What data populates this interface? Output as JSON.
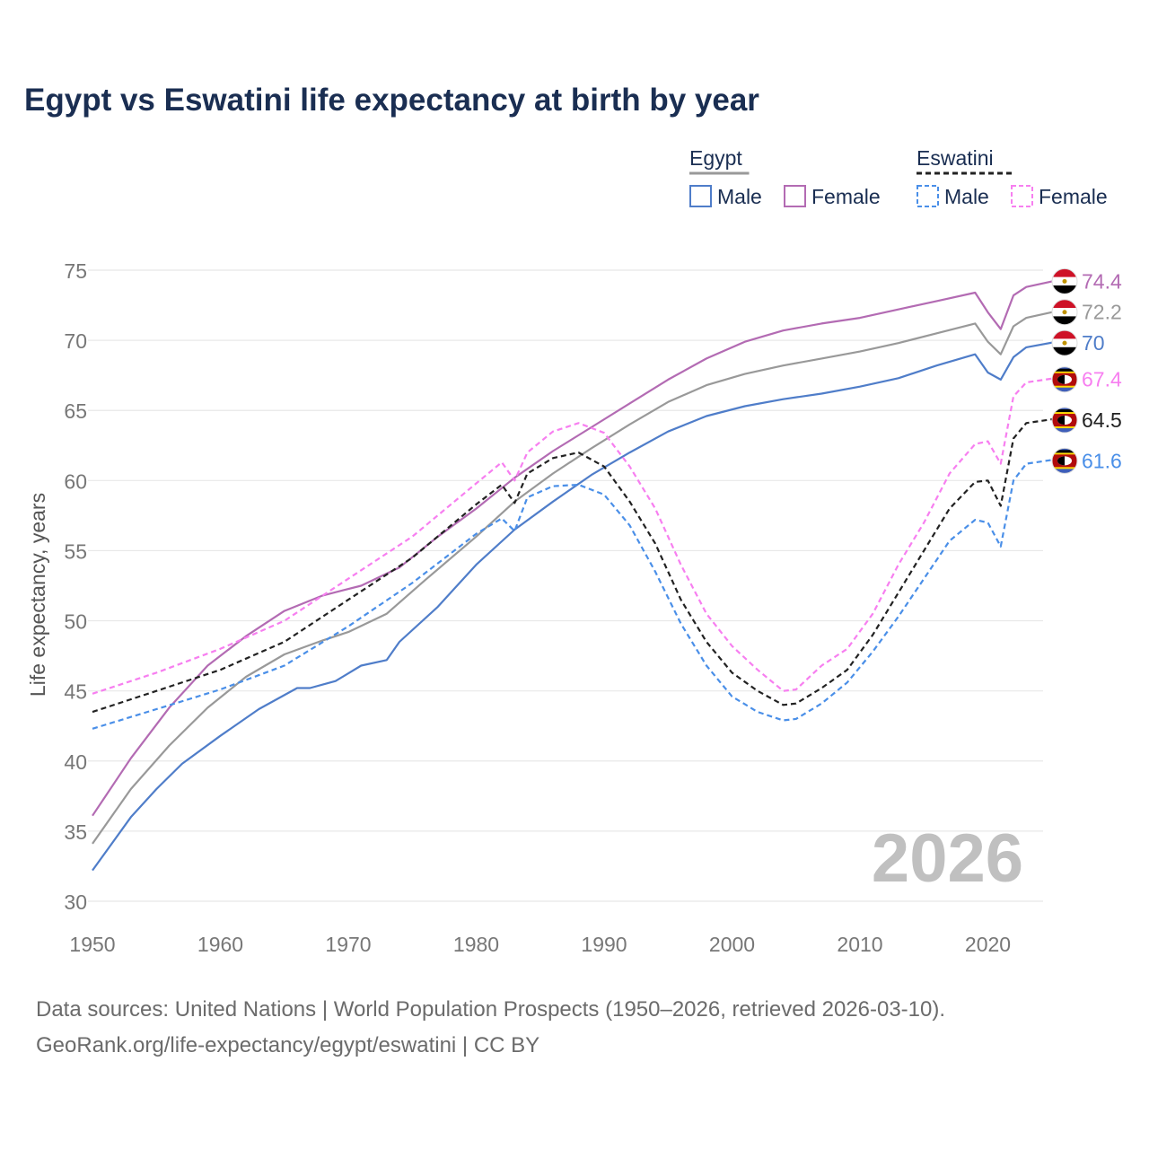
{
  "title": "Egypt vs Eswatini life expectancy at birth by year",
  "legend": {
    "groups": [
      {
        "country": "Egypt",
        "line": "solid",
        "color": "#999999",
        "items": [
          {
            "label": "Male",
            "color": "#4f7dc9"
          },
          {
            "label": "Female",
            "color": "#b36bb3"
          }
        ]
      },
      {
        "country": "Eswatini",
        "line": "dashed",
        "color": "#222222",
        "items": [
          {
            "label": "Male",
            "color": "#4a8fe8"
          },
          {
            "label": "Female",
            "color": "#f77ff0"
          }
        ]
      }
    ]
  },
  "year_watermark": "2026",
  "footer": {
    "line1": "Data sources: United Nations | World Population Prospects (1950–2026, retrieved 2026-03-10).",
    "line2": "GeoRank.org/life-expectancy/egypt/eswatini | CC BY"
  },
  "colors": {
    "egypt_total": "#999999",
    "egypt_male": "#4f7dc9",
    "egypt_female": "#b36bb3",
    "eswatini_total": "#222222",
    "eswatini_male": "#4a8fe8",
    "eswatini_female": "#f77ff0",
    "title": "#1a2e52",
    "grid": "#e8e8e8",
    "axis_text": "#777777"
  },
  "chart_data": {
    "type": "line",
    "title": "Egypt vs Eswatini life expectancy at birth by year",
    "xlabel": "",
    "ylabel": "Life expectancy, years",
    "xlim": [
      1950,
      2026
    ],
    "ylim": [
      30,
      75
    ],
    "xticks": [
      1950,
      1960,
      1970,
      1980,
      1990,
      2000,
      2010,
      2020
    ],
    "yticks": [
      30,
      35,
      40,
      45,
      50,
      55,
      60,
      65,
      70,
      75
    ],
    "series": [
      {
        "name": "Egypt Female",
        "key": "egypt_female",
        "style": "solid",
        "end_label": "74.4",
        "points": [
          [
            1950,
            36.1
          ],
          [
            1953,
            40.2
          ],
          [
            1956,
            43.8
          ],
          [
            1959,
            46.8
          ],
          [
            1962,
            48.9
          ],
          [
            1965,
            50.7
          ],
          [
            1968,
            51.8
          ],
          [
            1971,
            52.5
          ],
          [
            1974,
            53.8
          ],
          [
            1977,
            56.0
          ],
          [
            1980,
            58.0
          ],
          [
            1983,
            60.2
          ],
          [
            1986,
            62.1
          ],
          [
            1989,
            63.8
          ],
          [
            1992,
            65.5
          ],
          [
            1995,
            67.2
          ],
          [
            1998,
            68.7
          ],
          [
            2001,
            69.9
          ],
          [
            2004,
            70.7
          ],
          [
            2007,
            71.2
          ],
          [
            2010,
            71.6
          ],
          [
            2013,
            72.2
          ],
          [
            2016,
            72.8
          ],
          [
            2019,
            73.4
          ],
          [
            2020,
            72.0
          ],
          [
            2021,
            70.8
          ],
          [
            2022,
            73.2
          ],
          [
            2023,
            73.8
          ],
          [
            2026,
            74.4
          ]
        ]
      },
      {
        "name": "Egypt Total",
        "key": "egypt_total",
        "style": "solid",
        "end_label": "72.2",
        "points": [
          [
            1950,
            34.1
          ],
          [
            1953,
            38.0
          ],
          [
            1956,
            41.1
          ],
          [
            1959,
            43.8
          ],
          [
            1962,
            46.0
          ],
          [
            1965,
            47.6
          ],
          [
            1968,
            48.6
          ],
          [
            1970,
            49.2
          ],
          [
            1973,
            50.5
          ],
          [
            1976,
            52.9
          ],
          [
            1980,
            56.0
          ],
          [
            1983,
            58.5
          ],
          [
            1986,
            60.5
          ],
          [
            1989,
            62.3
          ],
          [
            1992,
            64.0
          ],
          [
            1995,
            65.6
          ],
          [
            1998,
            66.8
          ],
          [
            2001,
            67.6
          ],
          [
            2004,
            68.2
          ],
          [
            2007,
            68.7
          ],
          [
            2010,
            69.2
          ],
          [
            2013,
            69.8
          ],
          [
            2016,
            70.5
          ],
          [
            2019,
            71.2
          ],
          [
            2020,
            69.9
          ],
          [
            2021,
            69.0
          ],
          [
            2022,
            71.0
          ],
          [
            2023,
            71.6
          ],
          [
            2026,
            72.2
          ]
        ]
      },
      {
        "name": "Egypt Male",
        "key": "egypt_male",
        "style": "solid",
        "end_label": "70",
        "points": [
          [
            1950,
            32.2
          ],
          [
            1953,
            36.0
          ],
          [
            1955,
            38.0
          ],
          [
            1957,
            39.8
          ],
          [
            1960,
            41.8
          ],
          [
            1963,
            43.7
          ],
          [
            1966,
            45.2
          ],
          [
            1967,
            45.2
          ],
          [
            1969,
            45.7
          ],
          [
            1971,
            46.8
          ],
          [
            1973,
            47.2
          ],
          [
            1974,
            48.5
          ],
          [
            1977,
            51.0
          ],
          [
            1980,
            54.0
          ],
          [
            1983,
            56.5
          ],
          [
            1986,
            58.5
          ],
          [
            1989,
            60.4
          ],
          [
            1992,
            62.0
          ],
          [
            1995,
            63.5
          ],
          [
            1998,
            64.6
          ],
          [
            2001,
            65.3
          ],
          [
            2004,
            65.8
          ],
          [
            2007,
            66.2
          ],
          [
            2010,
            66.7
          ],
          [
            2013,
            67.3
          ],
          [
            2016,
            68.2
          ],
          [
            2019,
            69.0
          ],
          [
            2020,
            67.7
          ],
          [
            2021,
            67.2
          ],
          [
            2022,
            68.8
          ],
          [
            2023,
            69.5
          ],
          [
            2026,
            70.0
          ]
        ]
      },
      {
        "name": "Eswatini Female",
        "key": "eswatini_female",
        "style": "dashed",
        "end_label": "67.4",
        "points": [
          [
            1950,
            44.8
          ],
          [
            1955,
            46.3
          ],
          [
            1960,
            48.0
          ],
          [
            1965,
            50.0
          ],
          [
            1970,
            53.0
          ],
          [
            1975,
            56.0
          ],
          [
            1980,
            59.8
          ],
          [
            1982,
            61.3
          ],
          [
            1983,
            60.0
          ],
          [
            1984,
            62.0
          ],
          [
            1986,
            63.5
          ],
          [
            1988,
            64.1
          ],
          [
            1990,
            63.4
          ],
          [
            1992,
            61.0
          ],
          [
            1994,
            58.0
          ],
          [
            1996,
            54.0
          ],
          [
            1998,
            50.5
          ],
          [
            2000,
            48.2
          ],
          [
            2002,
            46.5
          ],
          [
            2004,
            45.0
          ],
          [
            2005,
            45.1
          ],
          [
            2007,
            46.8
          ],
          [
            2009,
            48.0
          ],
          [
            2011,
            50.5
          ],
          [
            2013,
            54.0
          ],
          [
            2015,
            57.0
          ],
          [
            2017,
            60.5
          ],
          [
            2019,
            62.6
          ],
          [
            2020,
            62.8
          ],
          [
            2021,
            61.2
          ],
          [
            2022,
            66.0
          ],
          [
            2023,
            67.0
          ],
          [
            2026,
            67.4
          ]
        ]
      },
      {
        "name": "Eswatini Total",
        "key": "eswatini_total",
        "style": "dashed",
        "end_label": "64.5",
        "points": [
          [
            1950,
            43.5
          ],
          [
            1955,
            45.0
          ],
          [
            1960,
            46.5
          ],
          [
            1965,
            48.5
          ],
          [
            1970,
            51.5
          ],
          [
            1975,
            54.5
          ],
          [
            1980,
            58.3
          ],
          [
            1982,
            59.7
          ],
          [
            1983,
            58.4
          ],
          [
            1984,
            60.5
          ],
          [
            1986,
            61.6
          ],
          [
            1988,
            62.0
          ],
          [
            1990,
            61.0
          ],
          [
            1992,
            58.5
          ],
          [
            1994,
            55.5
          ],
          [
            1996,
            51.5
          ],
          [
            1998,
            48.5
          ],
          [
            2000,
            46.3
          ],
          [
            2002,
            45.0
          ],
          [
            2004,
            44.0
          ],
          [
            2005,
            44.1
          ],
          [
            2007,
            45.2
          ],
          [
            2009,
            46.5
          ],
          [
            2011,
            49.0
          ],
          [
            2013,
            52.0
          ],
          [
            2015,
            55.0
          ],
          [
            2017,
            58.0
          ],
          [
            2019,
            59.9
          ],
          [
            2020,
            60.0
          ],
          [
            2021,
            58.2
          ],
          [
            2022,
            63.0
          ],
          [
            2023,
            64.1
          ],
          [
            2026,
            64.5
          ]
        ]
      },
      {
        "name": "Eswatini Male",
        "key": "eswatini_male",
        "style": "dashed",
        "end_label": "61.6",
        "points": [
          [
            1950,
            42.3
          ],
          [
            1955,
            43.7
          ],
          [
            1960,
            45.1
          ],
          [
            1965,
            46.8
          ],
          [
            1970,
            49.6
          ],
          [
            1975,
            52.7
          ],
          [
            1980,
            56.2
          ],
          [
            1982,
            57.3
          ],
          [
            1983,
            56.4
          ],
          [
            1984,
            58.8
          ],
          [
            1986,
            59.6
          ],
          [
            1988,
            59.7
          ],
          [
            1990,
            59.0
          ],
          [
            1992,
            56.8
          ],
          [
            1994,
            53.5
          ],
          [
            1996,
            49.8
          ],
          [
            1998,
            46.8
          ],
          [
            2000,
            44.6
          ],
          [
            2002,
            43.5
          ],
          [
            2004,
            42.9
          ],
          [
            2005,
            43.0
          ],
          [
            2007,
            44.1
          ],
          [
            2009,
            45.6
          ],
          [
            2011,
            47.8
          ],
          [
            2013,
            50.3
          ],
          [
            2015,
            53.0
          ],
          [
            2017,
            55.7
          ],
          [
            2019,
            57.2
          ],
          [
            2020,
            57.0
          ],
          [
            2021,
            55.3
          ],
          [
            2022,
            60.0
          ],
          [
            2023,
            61.2
          ],
          [
            2026,
            61.6
          ]
        ]
      }
    ]
  }
}
